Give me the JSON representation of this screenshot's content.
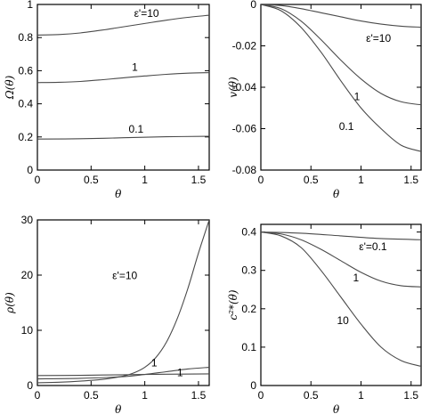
{
  "chart_data": [
    {
      "type": "line",
      "xlabel": "θ",
      "ylabel": "Ω(θ)",
      "xlim": [
        0,
        1.6
      ],
      "ylim": [
        0,
        1
      ],
      "xticks": [
        "0",
        "0.5",
        "1",
        "1.5"
      ],
      "yticks": [
        "0",
        "0.2",
        "0.4",
        "0.6",
        "0.8",
        "1"
      ],
      "series": [
        {
          "label": "ε'=10",
          "x": [
            0,
            0.2,
            0.4,
            0.6,
            0.8,
            1.0,
            1.2,
            1.4,
            1.6
          ],
          "y": [
            0.815,
            0.818,
            0.828,
            0.845,
            0.865,
            0.885,
            0.905,
            0.922,
            0.935
          ]
        },
        {
          "label": "1",
          "x": [
            0,
            0.2,
            0.4,
            0.6,
            0.8,
            1.0,
            1.2,
            1.4,
            1.6
          ],
          "y": [
            0.528,
            0.53,
            0.535,
            0.545,
            0.557,
            0.568,
            0.578,
            0.585,
            0.588
          ]
        },
        {
          "label": "0.1",
          "x": [
            0,
            0.4,
            0.8,
            1.2,
            1.6
          ],
          "y": [
            0.187,
            0.189,
            0.195,
            0.201,
            0.204
          ]
        }
      ]
    },
    {
      "type": "line",
      "xlabel": "θ",
      "ylabel": "v(θ)",
      "xlim": [
        0,
        1.6
      ],
      "ylim": [
        -0.08,
        0
      ],
      "xticks": [
        "0",
        "0.5",
        "1",
        "1.5"
      ],
      "yticks": [
        "0",
        "-0.02",
        "-0.04",
        "-0.06",
        "-0.08"
      ],
      "series": [
        {
          "label": "ε'=10",
          "x": [
            0,
            0.2,
            0.4,
            0.6,
            0.8,
            1.0,
            1.2,
            1.4,
            1.6
          ],
          "y": [
            0,
            -0.0005,
            -0.002,
            -0.004,
            -0.006,
            -0.008,
            -0.0095,
            -0.0105,
            -0.011
          ]
        },
        {
          "label": "1",
          "x": [
            0,
            0.2,
            0.4,
            0.6,
            0.8,
            1.0,
            1.2,
            1.4,
            1.6
          ],
          "y": [
            0,
            -0.002,
            -0.008,
            -0.017,
            -0.027,
            -0.036,
            -0.043,
            -0.047,
            -0.0485
          ]
        },
        {
          "label": "0.1",
          "x": [
            0,
            0.2,
            0.4,
            0.6,
            0.8,
            1.0,
            1.2,
            1.4,
            1.6
          ],
          "y": [
            0,
            -0.003,
            -0.011,
            -0.023,
            -0.037,
            -0.05,
            -0.06,
            -0.068,
            -0.071
          ]
        }
      ]
    },
    {
      "type": "line",
      "xlabel": "θ",
      "ylabel": "ρ(θ)",
      "xlim": [
        0,
        1.6
      ],
      "ylim": [
        0,
        30
      ],
      "xticks": [
        "0",
        "0.5",
        "1",
        "1.5"
      ],
      "yticks": [
        "0",
        "10",
        "20",
        "30"
      ],
      "series": [
        {
          "label": "ε'=10",
          "x": [
            0,
            0.2,
            0.4,
            0.6,
            0.8,
            0.9,
            1.0,
            1.1,
            1.2,
            1.3,
            1.4,
            1.5,
            1.6
          ],
          "y": [
            0.5,
            0.6,
            0.8,
            1.1,
            1.7,
            2.3,
            3.3,
            5.0,
            7.8,
            12.0,
            17.5,
            24.0,
            30.0
          ]
        },
        {
          "label": "1",
          "x": [
            0,
            0.4,
            0.8,
            1.0,
            1.2,
            1.4,
            1.6
          ],
          "y": [
            1.2,
            1.3,
            1.6,
            2.0,
            2.5,
            3.0,
            3.3
          ]
        },
        {
          "label": "1",
          "x": [
            0,
            0.4,
            0.8,
            1.2,
            1.6
          ],
          "y": [
            1.8,
            1.85,
            1.95,
            2.05,
            2.1
          ]
        }
      ]
    },
    {
      "type": "line",
      "xlabel": "θ",
      "ylabel": "c²*(θ)",
      "xlim": [
        0,
        1.6
      ],
      "ylim": [
        0,
        0.42
      ],
      "xticks": [
        "0",
        "0.5",
        "1",
        "1.5"
      ],
      "yticks": [
        "0",
        "0.1",
        "0.2",
        "0.3",
        "0.4"
      ],
      "series": [
        {
          "label": "ε'=0.1",
          "x": [
            0,
            0.4,
            0.8,
            1.2,
            1.6
          ],
          "y": [
            0.4,
            0.397,
            0.39,
            0.383,
            0.38
          ]
        },
        {
          "label": "1",
          "x": [
            0,
            0.2,
            0.4,
            0.6,
            0.8,
            1.0,
            1.2,
            1.4,
            1.6
          ],
          "y": [
            0.4,
            0.395,
            0.38,
            0.355,
            0.325,
            0.295,
            0.272,
            0.26,
            0.257
          ]
        },
        {
          "label": "10",
          "x": [
            0,
            0.2,
            0.4,
            0.6,
            0.8,
            1.0,
            1.2,
            1.4,
            1.6
          ],
          "y": [
            0.4,
            0.39,
            0.36,
            0.3,
            0.23,
            0.16,
            0.1,
            0.065,
            0.05
          ]
        }
      ]
    }
  ]
}
